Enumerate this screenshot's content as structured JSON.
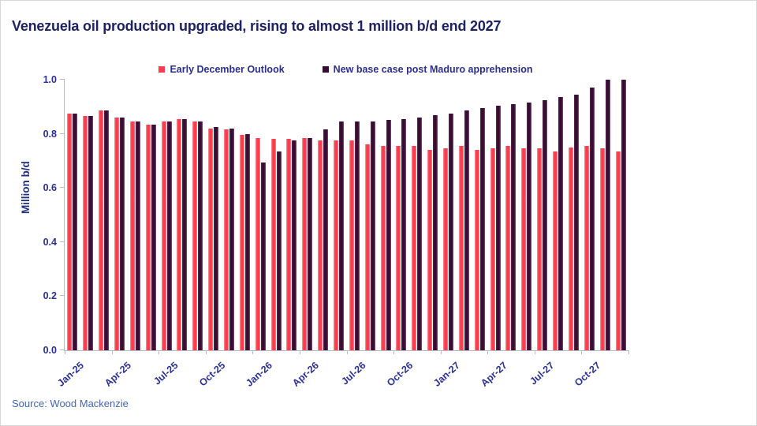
{
  "header": {
    "title": "Venezuela oil production upgraded, rising to almost 1 million b/d end 2027"
  },
  "source": {
    "label": "Source: Wood Mackenzie"
  },
  "chart_data": {
    "type": "bar",
    "title": "Venezuela oil production upgraded, rising to almost 1 million b/d end 2027",
    "xlabel": "",
    "ylabel": "Million b/d",
    "ylim": [
      0,
      1.0
    ],
    "ytick_labels": [
      "0.0",
      "0.2",
      "0.4",
      "0.6",
      "0.8",
      "1.0"
    ],
    "grid": false,
    "legend_position": "top-center",
    "categories": [
      "Jan-25",
      "Feb-25",
      "Mar-25",
      "Apr-25",
      "May-25",
      "Jun-25",
      "Jul-25",
      "Aug-25",
      "Sep-25",
      "Oct-25",
      "Nov-25",
      "Dec-25",
      "Jan-26",
      "Feb-26",
      "Mar-26",
      "Apr-26",
      "May-26",
      "Jun-26",
      "Jul-26",
      "Aug-26",
      "Sep-26",
      "Oct-26",
      "Nov-26",
      "Dec-26",
      "Jan-27",
      "Feb-27",
      "Mar-27",
      "Apr-27",
      "May-27",
      "Jun-27",
      "Jul-27",
      "Aug-27",
      "Sep-27",
      "Oct-27",
      "Nov-27",
      "Dec-27"
    ],
    "xtick_labels": [
      "Jan-25",
      "Apr-25",
      "Jul-25",
      "Oct-25",
      "Jan-26",
      "Apr-26",
      "Jul-26",
      "Oct-26",
      "Jan-27",
      "Apr-27",
      "Jul-27",
      "Oct-27"
    ],
    "xtick_every": 3,
    "series": [
      {
        "name": "Early December Outlook",
        "color": "#fa3e4f",
        "values": [
          0.875,
          0.865,
          0.885,
          0.86,
          0.845,
          0.835,
          0.845,
          0.855,
          0.845,
          0.82,
          0.815,
          0.795,
          0.785,
          0.78,
          0.78,
          0.785,
          0.775,
          0.775,
          0.775,
          0.76,
          0.755,
          0.755,
          0.755,
          0.74,
          0.745,
          0.755,
          0.74,
          0.745,
          0.755,
          0.745,
          0.745,
          0.735,
          0.75,
          0.755,
          0.745,
          0.735
        ]
      },
      {
        "name": "New base case post Maduro apprehension",
        "color": "#380c31",
        "values": [
          0.875,
          0.865,
          0.885,
          0.86,
          0.845,
          0.835,
          0.845,
          0.855,
          0.845,
          0.825,
          0.818,
          0.8,
          0.695,
          0.735,
          0.775,
          0.785,
          0.815,
          0.845,
          0.845,
          0.845,
          0.85,
          0.855,
          0.86,
          0.87,
          0.875,
          0.885,
          0.895,
          0.905,
          0.91,
          0.915,
          0.925,
          0.935,
          0.945,
          0.97,
          1.0,
          1.0
        ]
      }
    ]
  }
}
